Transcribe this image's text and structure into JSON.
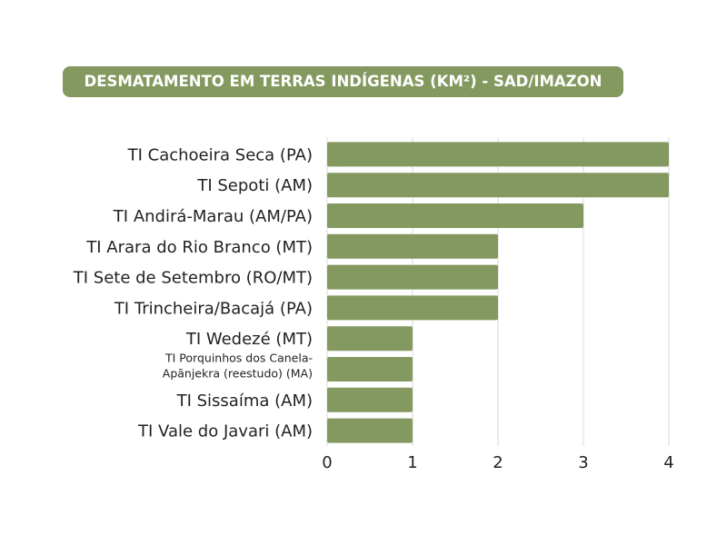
{
  "colors": {
    "bar": "#84995f",
    "badge": "#84995f",
    "grid": "#d9d9d9",
    "text": "#222222"
  },
  "chart_data": {
    "type": "bar",
    "orientation": "horizontal",
    "title": "DESMATAMENTO EM TERRAS INDÍGENAS (KM²) - SAD/IMAZON",
    "categories": [
      "TI Cachoeira Seca (PA)",
      "TI Sepoti (AM)",
      "TI Andirá-Marau (AM/PA)",
      "TI Arara do Rio Branco (MT)",
      "TI Sete de Setembro (RO/MT)",
      "TI Trincheira/Bacajá (PA)",
      "TI Wedezé (MT)",
      "TI Porquinhos dos Canela-Apãnjekra (reestudo) (MA)",
      "TI Sissaíma (AM)",
      "TI Vale do Javari (AM)"
    ],
    "values": [
      4,
      4,
      3,
      2,
      2,
      2,
      1,
      1,
      1,
      1
    ],
    "xlim": [
      0,
      4
    ],
    "xticks": [
      0,
      1,
      2,
      3,
      4
    ],
    "grid": true,
    "legend": "none"
  }
}
